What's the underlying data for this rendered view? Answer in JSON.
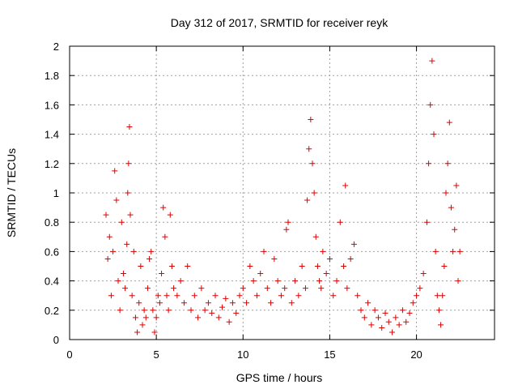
{
  "chart_data": {
    "type": "scatter",
    "title": "Day 312 of 2017, SRMTID for receiver reyk",
    "xlabel": "GPS time / hours",
    "ylabel": "SRMTID / TECUs",
    "xlim": [
      0,
      24.5
    ],
    "ylim": [
      0,
      2
    ],
    "grid": true,
    "marker": "+",
    "color": "#e00000",
    "x_ticks": [
      0,
      5,
      10,
      15,
      20
    ],
    "x_tick_labels": [
      "0",
      "5",
      "10",
      "15",
      "20"
    ],
    "y_ticks": [
      0,
      0.2,
      0.4,
      0.6,
      0.8,
      1,
      1.2,
      1.4,
      1.6,
      1.8,
      2
    ],
    "y_tick_labels": [
      "0",
      "0.2",
      "0.4",
      "0.6",
      "0.8",
      "1",
      "1.2",
      "1.4",
      "1.6",
      "1.8",
      "2"
    ],
    "series": [
      {
        "name": "SRMTID",
        "points": [
          [
            2.1,
            0.85
          ],
          [
            2.2,
            0.55
          ],
          [
            2.3,
            0.7
          ],
          [
            2.4,
            0.3
          ],
          [
            2.5,
            0.6
          ],
          [
            2.6,
            1.15
          ],
          [
            2.7,
            0.95
          ],
          [
            2.8,
            0.4
          ],
          [
            2.9,
            0.2
          ],
          [
            3.0,
            0.8
          ],
          [
            3.1,
            0.45
          ],
          [
            3.2,
            0.35
          ],
          [
            3.3,
            0.65
          ],
          [
            3.35,
            1.0
          ],
          [
            3.4,
            1.2
          ],
          [
            3.45,
            1.45
          ],
          [
            3.5,
            0.85
          ],
          [
            3.6,
            0.3
          ],
          [
            3.7,
            0.6
          ],
          [
            3.8,
            0.15
          ],
          [
            3.9,
            0.05
          ],
          [
            4.0,
            0.25
          ],
          [
            4.1,
            0.5
          ],
          [
            4.2,
            0.1
          ],
          [
            4.3,
            0.2
          ],
          [
            4.4,
            0.15
          ],
          [
            4.5,
            0.35
          ],
          [
            4.6,
            0.55
          ],
          [
            4.7,
            0.6
          ],
          [
            4.8,
            0.2
          ],
          [
            4.9,
            0.05
          ],
          [
            5.0,
            0.15
          ],
          [
            5.1,
            0.3
          ],
          [
            5.2,
            0.25
          ],
          [
            5.3,
            0.45
          ],
          [
            5.4,
            0.9
          ],
          [
            5.5,
            0.7
          ],
          [
            5.6,
            0.3
          ],
          [
            5.7,
            0.2
          ],
          [
            5.8,
            0.85
          ],
          [
            5.9,
            0.5
          ],
          [
            6.0,
            0.35
          ],
          [
            6.2,
            0.3
          ],
          [
            6.4,
            0.4
          ],
          [
            6.6,
            0.25
          ],
          [
            6.8,
            0.5
          ],
          [
            7.0,
            0.2
          ],
          [
            7.2,
            0.3
          ],
          [
            7.4,
            0.15
          ],
          [
            7.6,
            0.35
          ],
          [
            7.8,
            0.2
          ],
          [
            8.0,
            0.25
          ],
          [
            8.2,
            0.18
          ],
          [
            8.4,
            0.3
          ],
          [
            8.6,
            0.15
          ],
          [
            8.8,
            0.22
          ],
          [
            9.0,
            0.28
          ],
          [
            9.2,
            0.12
          ],
          [
            9.4,
            0.25
          ],
          [
            9.6,
            0.18
          ],
          [
            9.8,
            0.3
          ],
          [
            10.0,
            0.35
          ],
          [
            10.2,
            0.25
          ],
          [
            10.4,
            0.5
          ],
          [
            10.6,
            0.4
          ],
          [
            10.8,
            0.3
          ],
          [
            11.0,
            0.45
          ],
          [
            11.2,
            0.6
          ],
          [
            11.4,
            0.35
          ],
          [
            11.6,
            0.25
          ],
          [
            11.8,
            0.55
          ],
          [
            12.0,
            0.4
          ],
          [
            12.2,
            0.3
          ],
          [
            12.4,
            0.35
          ],
          [
            12.5,
            0.75
          ],
          [
            12.6,
            0.8
          ],
          [
            12.8,
            0.25
          ],
          [
            13.0,
            0.4
          ],
          [
            13.2,
            0.3
          ],
          [
            13.4,
            0.5
          ],
          [
            13.6,
            0.35
          ],
          [
            13.7,
            0.95
          ],
          [
            13.8,
            1.3
          ],
          [
            13.9,
            1.5
          ],
          [
            14.0,
            1.2
          ],
          [
            14.1,
            1.0
          ],
          [
            14.2,
            0.7
          ],
          [
            14.3,
            0.5
          ],
          [
            14.4,
            0.4
          ],
          [
            14.5,
            0.35
          ],
          [
            14.6,
            0.6
          ],
          [
            14.8,
            0.45
          ],
          [
            15.0,
            0.55
          ],
          [
            15.2,
            0.3
          ],
          [
            15.4,
            0.4
          ],
          [
            15.6,
            0.8
          ],
          [
            15.8,
            0.5
          ],
          [
            15.9,
            1.05
          ],
          [
            16.0,
            0.35
          ],
          [
            16.2,
            0.55
          ],
          [
            16.4,
            0.65
          ],
          [
            16.6,
            0.3
          ],
          [
            16.8,
            0.2
          ],
          [
            17.0,
            0.15
          ],
          [
            17.2,
            0.25
          ],
          [
            17.4,
            0.1
          ],
          [
            17.6,
            0.2
          ],
          [
            17.8,
            0.15
          ],
          [
            18.0,
            0.08
          ],
          [
            18.2,
            0.18
          ],
          [
            18.4,
            0.12
          ],
          [
            18.6,
            0.05
          ],
          [
            18.8,
            0.15
          ],
          [
            19.0,
            0.1
          ],
          [
            19.2,
            0.2
          ],
          [
            19.4,
            0.12
          ],
          [
            19.6,
            0.18
          ],
          [
            19.8,
            0.25
          ],
          [
            20.0,
            0.3
          ],
          [
            20.2,
            0.35
          ],
          [
            20.4,
            0.45
          ],
          [
            20.6,
            0.8
          ],
          [
            20.7,
            1.2
          ],
          [
            20.8,
            1.6
          ],
          [
            20.9,
            1.9
          ],
          [
            21.0,
            1.4
          ],
          [
            21.1,
            0.6
          ],
          [
            21.2,
            0.3
          ],
          [
            21.3,
            0.2
          ],
          [
            21.4,
            0.1
          ],
          [
            21.5,
            0.3
          ],
          [
            21.6,
            0.5
          ],
          [
            21.7,
            1.0
          ],
          [
            21.8,
            1.2
          ],
          [
            21.9,
            1.48
          ],
          [
            22.0,
            0.9
          ],
          [
            22.1,
            0.6
          ],
          [
            22.2,
            0.75
          ],
          [
            22.3,
            1.05
          ],
          [
            22.4,
            0.4
          ],
          [
            22.5,
            0.6
          ]
        ]
      }
    ]
  }
}
